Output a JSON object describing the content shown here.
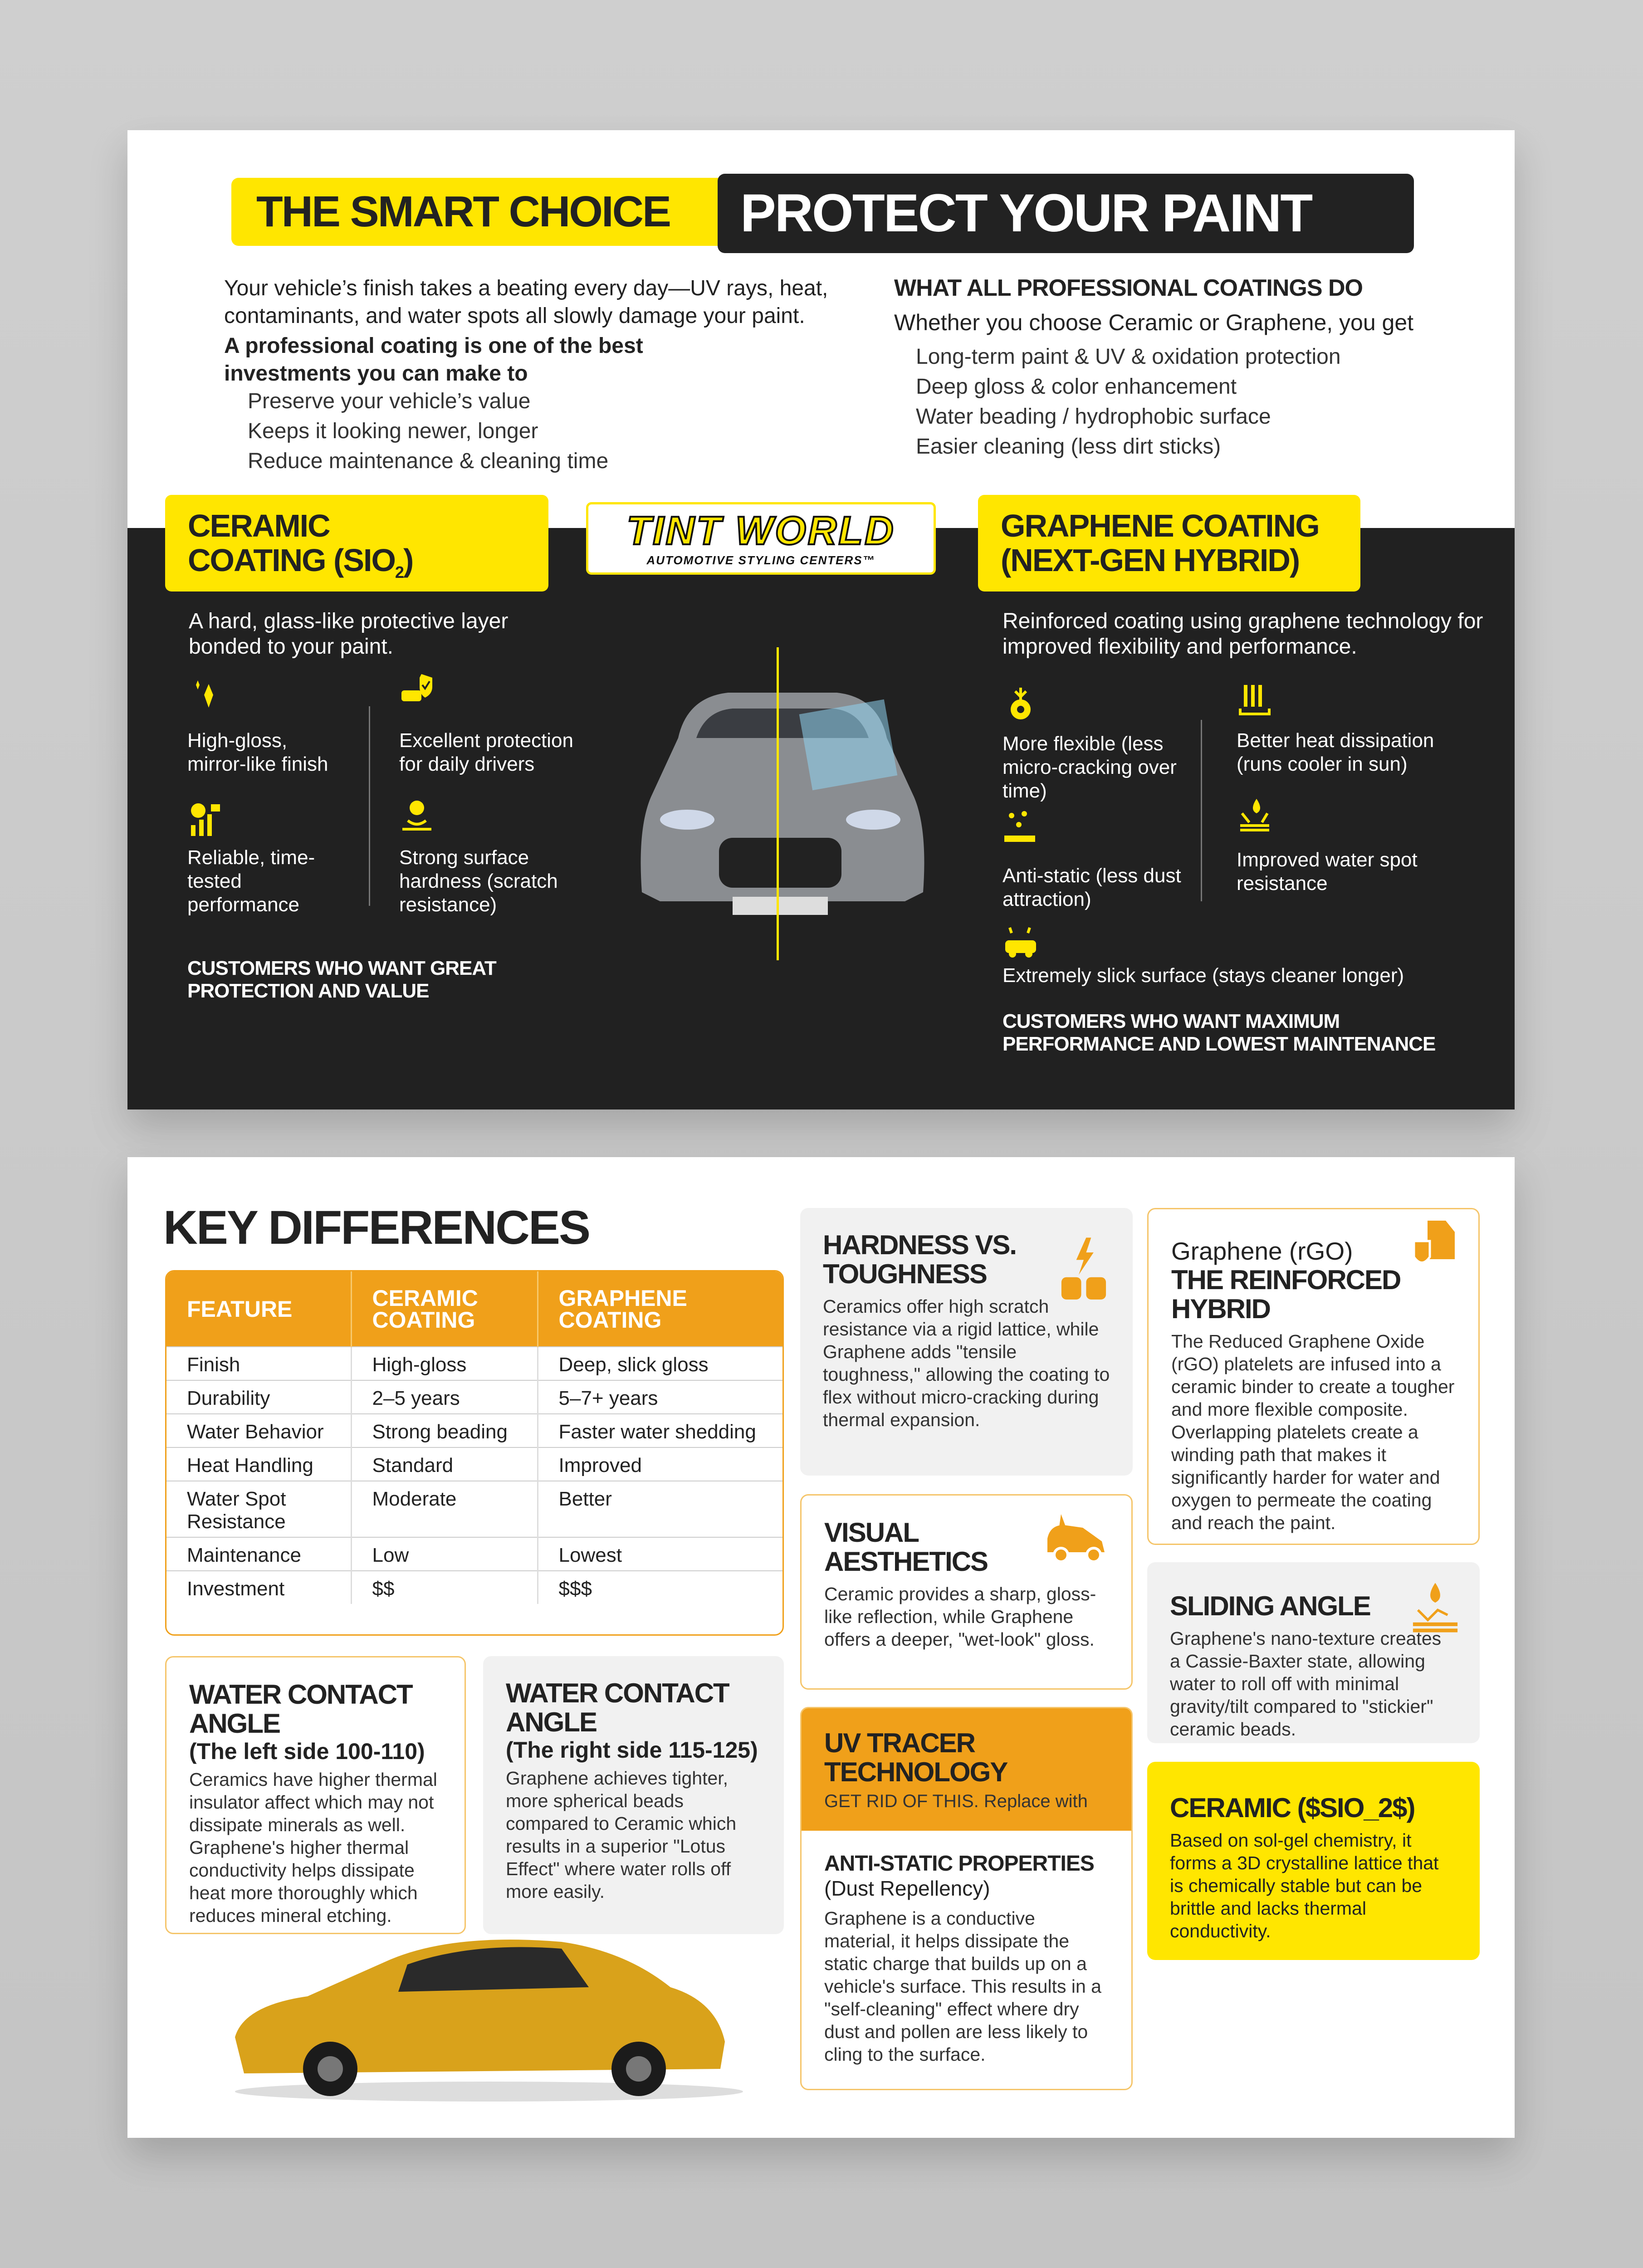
{
  "colors": {
    "yellow": "#ffe600",
    "orange": "#f0a01a",
    "dark": "#212121"
  },
  "header": {
    "tag": "THE SMART CHOICE",
    "title": "PROTECT YOUR PAINT"
  },
  "intro": {
    "paragraph": "Your vehicle’s finish takes a beating every day—UV rays, heat, contaminants, and water spots all slowly damage your paint.",
    "lead": "A professional coating is one of the best investments you can make to",
    "items": [
      "Preserve your vehicle’s value",
      "Keeps it looking newer, longer",
      "Reduce maintenance & cleaning time"
    ]
  },
  "all_coatings": {
    "heading": "WHAT ALL PROFESSIONAL COATINGS DO",
    "lead": "Whether you choose Ceramic or Graphene, you get",
    "items": [
      "Long-term paint & UV & oxidation protection",
      "Deep gloss & color enhancement",
      "Water beading / hydrophobic surface",
      "Easier cleaning (less dirt sticks)"
    ]
  },
  "logo": {
    "name": "TINT WORLD",
    "tagline": "AUTOMOTIVE STYLING CENTERS™"
  },
  "ceramic": {
    "title_line1": "CERAMIC",
    "title_line2": "COATING (SIO",
    "title_sub": "2",
    "title_end": ")",
    "description": "A hard, glass-like protective layer bonded to your paint.",
    "features": [
      {
        "icon": "sparkle-icon",
        "text": "High-gloss, mirror-like finish"
      },
      {
        "icon": "car-shield-icon",
        "text": "Excellent protection for daily drivers"
      },
      {
        "icon": "reliability-chart-icon",
        "text": "Reliable, time-tested performance"
      },
      {
        "icon": "surface-hardness-icon",
        "text": "Strong surface hardness (scratch resistance)"
      }
    ],
    "customers": "CUSTOMERS WHO WANT GREAT PROTECTION AND VALUE"
  },
  "graphene": {
    "title_line1": "GRAPHENE COATING",
    "title_line2": "(NEXT-GEN HYBRID)",
    "description": "Reinforced coating using graphene technology for improved flexibility and performance.",
    "features": [
      {
        "icon": "flexible-gear-icon",
        "text": "More flexible (less micro-cracking over time)"
      },
      {
        "icon": "heat-dissipation-icon",
        "text": "Better heat dissipation (runs cooler in sun)"
      },
      {
        "icon": "anti-static-icon",
        "text": "Anti-static (less dust attraction)"
      },
      {
        "icon": "water-spot-icon",
        "text": "Improved water spot resistance"
      },
      {
        "icon": "slick-car-icon",
        "text": "Extremely slick surface (stays cleaner longer)"
      }
    ],
    "customers": "CUSTOMERS WHO WANT MAXIMUM PERFORMANCE AND LOWEST MAINTENANCE"
  },
  "key_differences": {
    "title": "KEY DIFFERENCES",
    "columns": [
      "FEATURE",
      "CERAMIC COATING",
      "GRAPHENE COATING"
    ],
    "rows": [
      [
        "Finish",
        "High-gloss",
        "Deep, slick gloss"
      ],
      [
        "Durability",
        "2–5 years",
        "5–7+ years"
      ],
      [
        "Water Behavior",
        "Strong beading",
        "Faster water shedding"
      ],
      [
        "Heat Handling",
        "Standard",
        "Improved"
      ],
      [
        "Water Spot Resistance",
        "Moderate",
        "Better"
      ],
      [
        "Maintenance",
        "Low",
        "Lowest"
      ],
      [
        "Investment",
        "$$",
        "$$$"
      ]
    ]
  },
  "cards": {
    "wca_left": {
      "title": "WATER CONTACT ANGLE",
      "sub": "(The left side 100-110)",
      "body": "Ceramics have higher thermal insulator affect which may not dissipate minerals as well. Graphene's higher thermal conductivity helps dissipate heat more thoroughly which reduces mineral etching."
    },
    "wca_right": {
      "title": "WATER CONTACT ANGLE",
      "sub": "(The right side 115-125)",
      "body": "Graphene achieves tighter, more spherical beads compared to Ceramic which results in a superior \"Lotus Effect\" where water rolls off more easily."
    },
    "hardness": {
      "title": "HARDNESS VS. TOUGHNESS",
      "body": "Ceramics offer high scratch resistance via a rigid lattice, while Graphene adds \"tensile toughness,\" allowing the coating to flex without micro-cracking during thermal expansion."
    },
    "visual": {
      "title": "VISUAL AESTHETICS",
      "body": "Ceramic provides a sharp, gloss-like reflection, while Graphene offers a deeper, \"wet-look\" gloss."
    },
    "uv": {
      "title": "UV TRACER TECHNOLOGY",
      "note": "GET RID OF THIS.  Replace with"
    },
    "antistatic": {
      "title": "ANTI-STATIC PROPERTIES",
      "sub": "(Dust Repellency)",
      "body": "Graphene is a conductive material, it helps dissipate the static charge that builds up on a vehicle's surface. This results in a \"self-cleaning\" effect where dry dust and pollen are less likely to cling to the surface."
    },
    "rgo": {
      "pre": "Graphene (rGO)",
      "title": "THE REINFORCED HYBRID",
      "body": "The Reduced Graphene Oxide (rGO) platelets are infused into a ceramic binder to create a tougher and more flexible composite. Overlapping platelets create a winding path that makes it significantly harder for water and oxygen to permeate the coating and reach the paint."
    },
    "sliding": {
      "title": "SLIDING ANGLE",
      "body": "Graphene's nano-texture creates a Cassie-Baxter state, allowing water to roll off with minimal gravity/tilt compared to \"stickier\" ceramic beads."
    },
    "ceramic_sio2": {
      "title": "CERAMIC ($SIO_2$)",
      "body": "Based on sol-gel chemistry, it forms a 3D crystalline lattice that is chemically stable but can be brittle and lacks thermal conductivity."
    }
  }
}
